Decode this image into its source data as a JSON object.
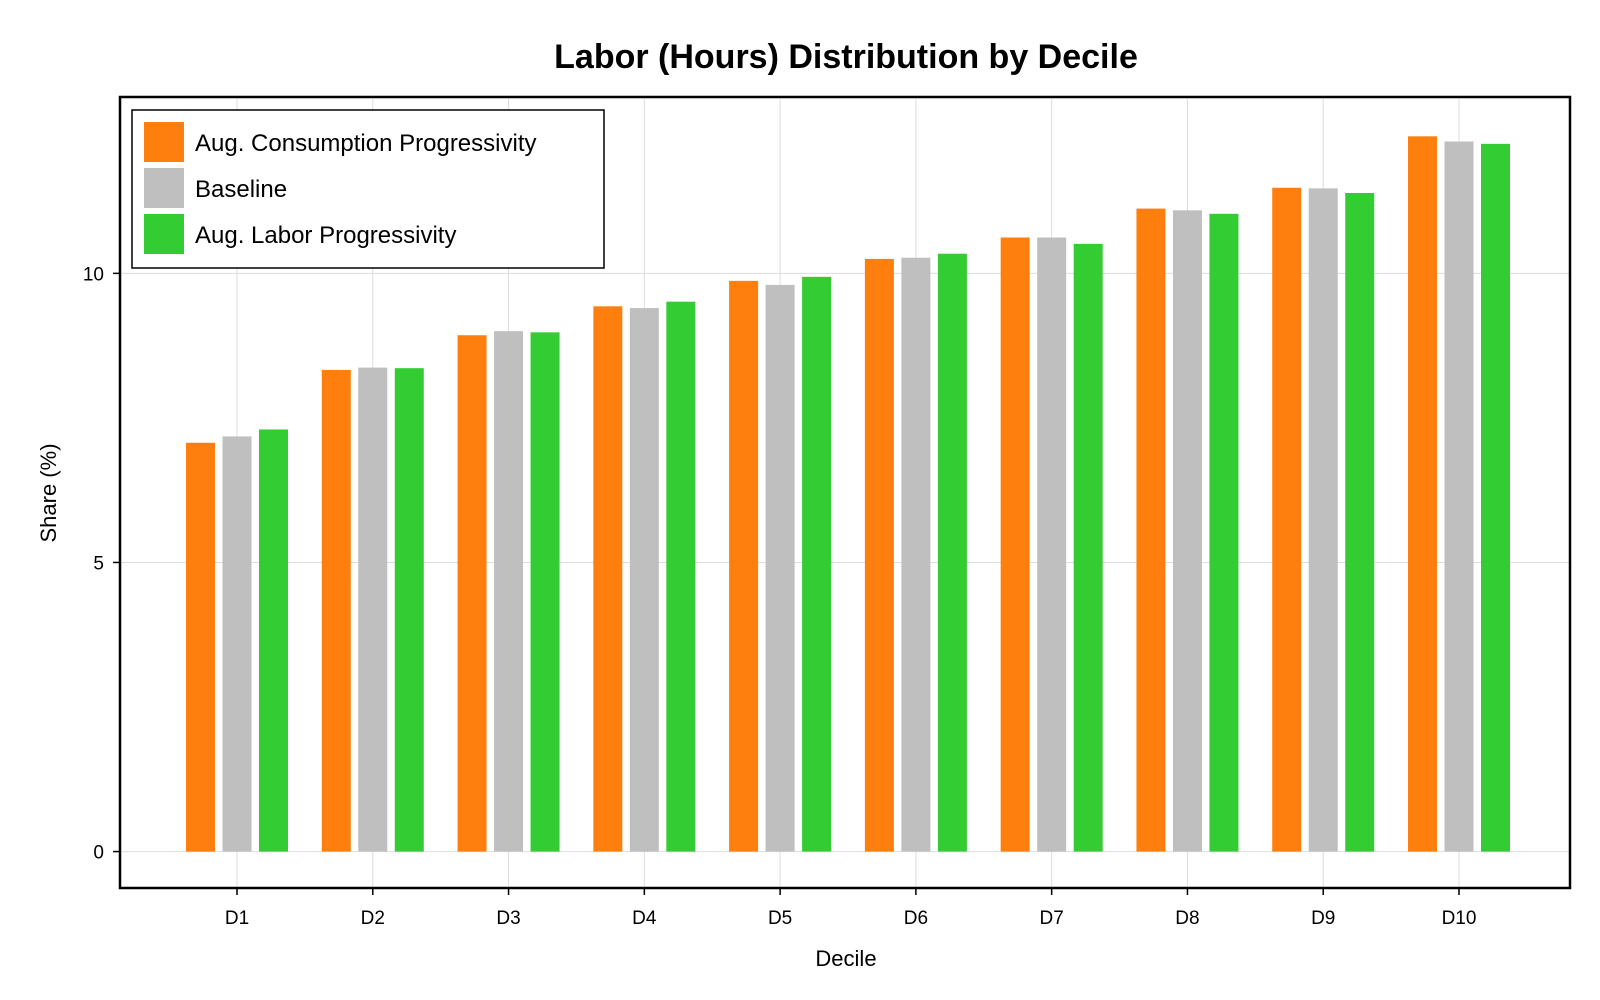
{
  "chart_data": {
    "type": "bar",
    "title": "Labor (Hours) Distribution by Decile",
    "xlabel": "Decile",
    "ylabel": "Share (%)",
    "categories": [
      "D1",
      "D2",
      "D3",
      "D4",
      "D5",
      "D6",
      "D7",
      "D8",
      "D9",
      "D10"
    ],
    "yticks": [
      "0",
      "5",
      "10"
    ],
    "ylim": [
      -0.63,
      13.05
    ],
    "grid": true,
    "legend_position": "top-left",
    "series": [
      {
        "name": "Aug. Consumption Progressivity",
        "color": "#ff7f0e",
        "values": [
          7.07,
          8.33,
          8.93,
          9.43,
          9.87,
          10.25,
          10.62,
          11.12,
          11.48,
          12.37
        ]
      },
      {
        "name": "Baseline",
        "color": "#bfbfbf",
        "values": [
          7.18,
          8.37,
          9.0,
          9.4,
          9.8,
          10.27,
          10.62,
          11.09,
          11.47,
          12.28
        ]
      },
      {
        "name": "Aug. Labor Progressivity",
        "color": "#33cc33",
        "values": [
          7.3,
          8.36,
          8.98,
          9.51,
          9.94,
          10.34,
          10.51,
          11.03,
          11.39,
          12.24
        ]
      }
    ]
  }
}
